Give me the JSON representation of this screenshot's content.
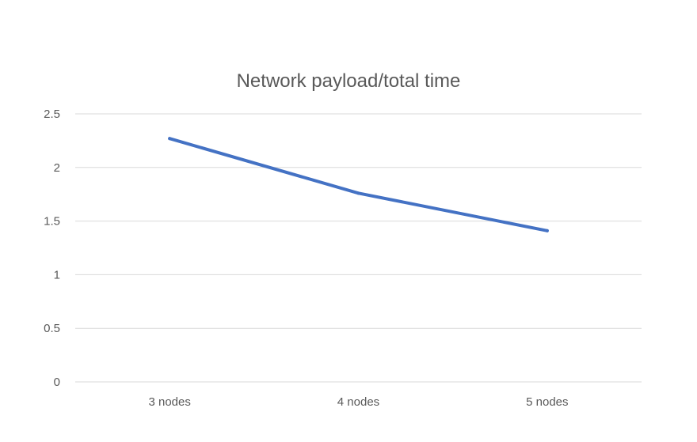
{
  "chart_data": {
    "type": "line",
    "title": "Network payload/total time",
    "categories": [
      "3 nodes",
      "4 nodes",
      "5 nodes"
    ],
    "series": [
      {
        "name": "Network payload/total time",
        "values": [
          2.27,
          1.76,
          1.41
        ],
        "color": "#4472c4"
      }
    ],
    "ylim": [
      0,
      2.5
    ],
    "yticks": [
      0,
      0.5,
      1,
      1.5,
      2,
      2.5
    ],
    "ytick_labels": [
      "0",
      "0.5",
      "1",
      "1.5",
      "2",
      "2.5"
    ],
    "xlabel": "",
    "ylabel": "",
    "grid": true,
    "legend": "none"
  }
}
